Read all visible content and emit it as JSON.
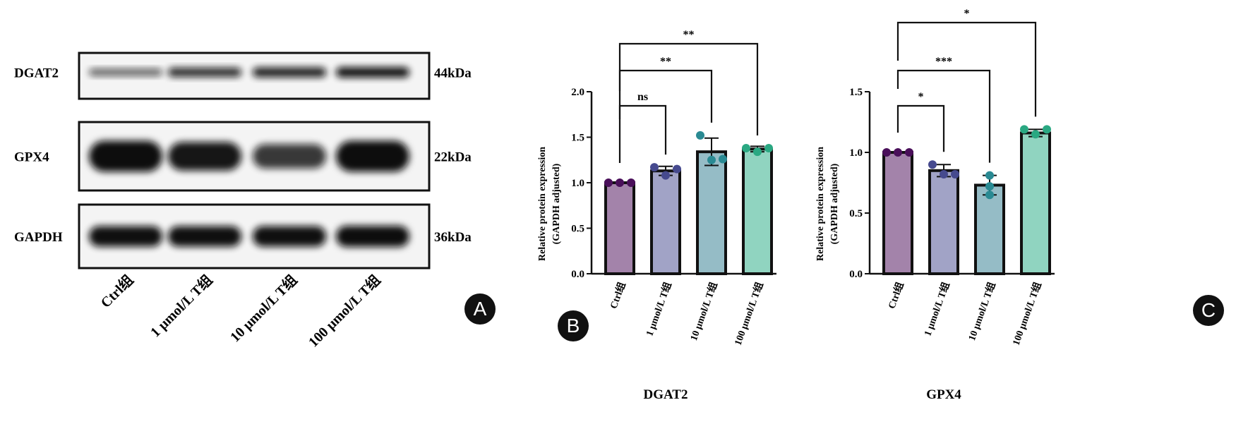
{
  "panel_labels": {
    "a": "A",
    "b": "B",
    "c": "C"
  },
  "blot": {
    "rows": [
      {
        "protein": "DGAT2",
        "size": "44kDa",
        "band_intensity": [
          0.35,
          0.7,
          0.8,
          0.9
        ]
      },
      {
        "protein": "GPX4",
        "size": "22kDa",
        "band_intensity": [
          1.0,
          0.85,
          0.6,
          1.0
        ]
      },
      {
        "protein": "GAPDH",
        "size": "36kDa",
        "band_intensity": [
          0.9,
          0.9,
          0.9,
          0.95
        ]
      }
    ],
    "lanes": [
      "Ctrl组",
      "1 μmol/L T组",
      "10 μmol/L T组",
      "100 μmol/L T组"
    ]
  },
  "chart_data": [
    {
      "type": "bar",
      "title": "",
      "xlabel": "DGAT2",
      "ylabel": "Relative protein expression (GAPDH adjusted)",
      "ylim": [
        0,
        2.0
      ],
      "yticks": [
        "0.0",
        "0.5",
        "1.0",
        "1.5",
        "2.0"
      ],
      "categories": [
        "Ctrl组",
        "1 μmol/L T组",
        "10 μmol/L T组",
        "100 μmol/L T组"
      ],
      "values": [
        1.0,
        1.13,
        1.34,
        1.37
      ],
      "errors": [
        0.0,
        0.05,
        0.15,
        0.03
      ],
      "points": [
        [
          1.0,
          1.0,
          1.0
        ],
        [
          1.17,
          1.08,
          1.15
        ],
        [
          1.52,
          1.25,
          1.26
        ],
        [
          1.38,
          1.34,
          1.38
        ]
      ],
      "bar_colors": [
        "#a383aa",
        "#a1a3c6",
        "#95bcc6",
        "#90d4c0"
      ],
      "point_colors": [
        "#4a0f5a",
        "#464a8e",
        "#2a8a93",
        "#2aa882"
      ],
      "comparisons": [
        {
          "from": 0,
          "to": 1,
          "label": "ns"
        },
        {
          "from": 0,
          "to": 2,
          "label": "**"
        },
        {
          "from": 0,
          "to": 3,
          "label": "**"
        }
      ]
    },
    {
      "type": "bar",
      "title": "",
      "xlabel": "GPX4",
      "ylabel": "Relative protein expression (GAPDH adjusted)",
      "ylim": [
        0,
        1.5
      ],
      "yticks": [
        "0.0",
        "0.5",
        "1.0",
        "1.5"
      ],
      "categories": [
        "Ctrl组",
        "1 μmol/L T组",
        "10 μmol/L T组",
        "100 μmol/L T组"
      ],
      "values": [
        1.0,
        0.85,
        0.73,
        1.16
      ],
      "errors": [
        0.0,
        0.05,
        0.08,
        0.03
      ],
      "points": [
        [
          1.0,
          1.0,
          1.0
        ],
        [
          0.9,
          0.82,
          0.82
        ],
        [
          0.81,
          0.72,
          0.65
        ],
        [
          1.19,
          1.15,
          1.19
        ]
      ],
      "bar_colors": [
        "#a383aa",
        "#a1a3c6",
        "#95bcc6",
        "#90d4c0"
      ],
      "point_colors": [
        "#4a0f5a",
        "#464a8e",
        "#2a8a93",
        "#2aa882"
      ],
      "comparisons": [
        {
          "from": 0,
          "to": 1,
          "label": "*"
        },
        {
          "from": 0,
          "to": 2,
          "label": "***"
        },
        {
          "from": 0,
          "to": 3,
          "label": "*"
        }
      ]
    }
  ]
}
